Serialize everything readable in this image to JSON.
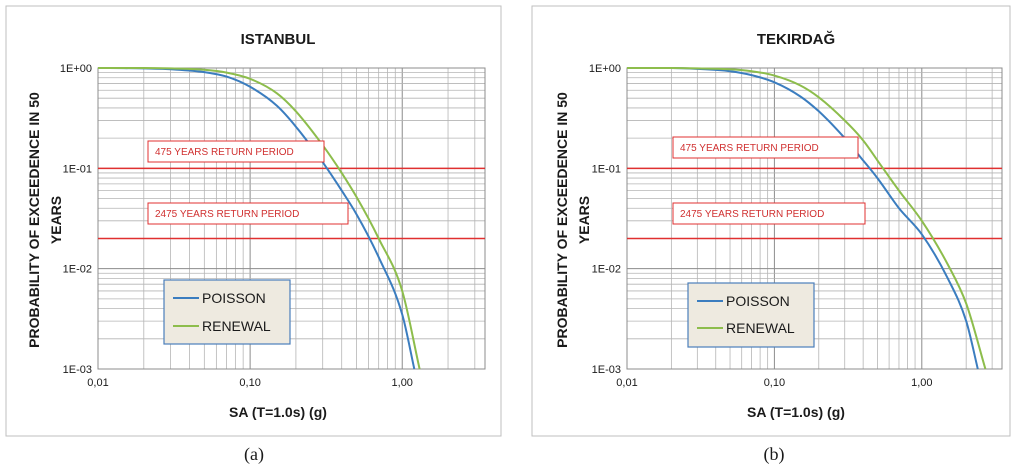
{
  "colors": {
    "poisson": "#3b7dbf",
    "renewal": "#8dbd4c",
    "return_period": "#e03030"
  },
  "chart_data": [
    {
      "type": "line",
      "title": "ISTANBUL",
      "caption": "(a)",
      "xlabel": "SA (T=1.0s) (g)",
      "ylabel_lines": [
        "PROBABILITY OF EXCEEDENCE IN 50",
        "YEARS"
      ],
      "x_scale": "log",
      "y_scale": "log",
      "xlim": [
        0.01,
        3.5
      ],
      "ylim": [
        0.001,
        1
      ],
      "x_ticks": [
        {
          "value": 0.01,
          "label": "0,01"
        },
        {
          "value": 0.1,
          "label": "0,10"
        },
        {
          "value": 1,
          "label": "1,00"
        }
      ],
      "y_ticks": [
        {
          "value": 1,
          "label": "1E+00"
        },
        {
          "value": 0.1,
          "label": "1E-01"
        },
        {
          "value": 0.01,
          "label": "1E-02"
        },
        {
          "value": 0.001,
          "label": "1E-03"
        }
      ],
      "grid": true,
      "legend": {
        "placement": "bottom-left"
      },
      "return_periods": [
        {
          "label": "475 YEARS RETURN PERIOD",
          "y": 0.1
        },
        {
          "label": "2475 YEARS RETURN PERIOD",
          "y": 0.02
        }
      ],
      "series": [
        {
          "name": "POISSON",
          "color": "#3b7dbf",
          "x": [
            0.01,
            0.02,
            0.03,
            0.05,
            0.07,
            0.1,
            0.15,
            0.2,
            0.3,
            0.4,
            0.5,
            0.7,
            1.0,
            1.2
          ],
          "y": [
            1.0,
            0.99,
            0.97,
            0.91,
            0.82,
            0.65,
            0.42,
            0.26,
            0.115,
            0.06,
            0.035,
            0.013,
            0.0035,
            0.001
          ]
        },
        {
          "name": "RENEWAL",
          "color": "#8dbd4c",
          "x": [
            0.01,
            0.02,
            0.03,
            0.05,
            0.07,
            0.1,
            0.15,
            0.2,
            0.3,
            0.4,
            0.5,
            0.7,
            1.0,
            1.3
          ],
          "y": [
            1.0,
            1.0,
            0.99,
            0.96,
            0.9,
            0.78,
            0.56,
            0.37,
            0.17,
            0.09,
            0.052,
            0.02,
            0.006,
            0.001
          ]
        }
      ]
    },
    {
      "type": "line",
      "title": "TEKIRDAĞ",
      "caption": "(b)",
      "xlabel": "SA (T=1.0s)  (g)",
      "ylabel_lines": [
        "PROBABILITY OF EXCEEDENCE IN 50",
        "YEARS"
      ],
      "x_scale": "log",
      "y_scale": "log",
      "xlim": [
        0.01,
        3.5
      ],
      "ylim": [
        0.001,
        1
      ],
      "x_ticks": [
        {
          "value": 0.01,
          "label": "0,01"
        },
        {
          "value": 0.1,
          "label": "0,10"
        },
        {
          "value": 1,
          "label": "1,00"
        }
      ],
      "y_ticks": [
        {
          "value": 1,
          "label": "1E+00"
        },
        {
          "value": 0.1,
          "label": "1E-01"
        },
        {
          "value": 0.01,
          "label": "1E-02"
        },
        {
          "value": 0.001,
          "label": "1E-03"
        }
      ],
      "grid": true,
      "legend": {
        "placement": "bottom-left"
      },
      "return_periods": [
        {
          "label": "475 YEARS RETURN PERIOD",
          "y": 0.1
        },
        {
          "label": "2475 YEARS RETURN PERIOD",
          "y": 0.02
        }
      ],
      "series": [
        {
          "name": "POISSON",
          "color": "#3b7dbf",
          "x": [
            0.01,
            0.02,
            0.03,
            0.05,
            0.07,
            0.1,
            0.15,
            0.2,
            0.3,
            0.4,
            0.5,
            0.7,
            1.0,
            1.5,
            2.0,
            2.4
          ],
          "y": [
            1.0,
            1.0,
            0.98,
            0.93,
            0.85,
            0.72,
            0.52,
            0.37,
            0.2,
            0.12,
            0.08,
            0.04,
            0.022,
            0.008,
            0.003,
            0.001
          ]
        },
        {
          "name": "RENEWAL",
          "color": "#8dbd4c",
          "x": [
            0.01,
            0.02,
            0.03,
            0.05,
            0.07,
            0.1,
            0.15,
            0.2,
            0.3,
            0.4,
            0.5,
            0.7,
            1.0,
            1.5,
            2.0,
            2.7
          ],
          "y": [
            1.0,
            1.0,
            0.99,
            0.97,
            0.93,
            0.84,
            0.67,
            0.51,
            0.3,
            0.19,
            0.12,
            0.06,
            0.03,
            0.011,
            0.0045,
            0.001
          ]
        }
      ]
    }
  ]
}
